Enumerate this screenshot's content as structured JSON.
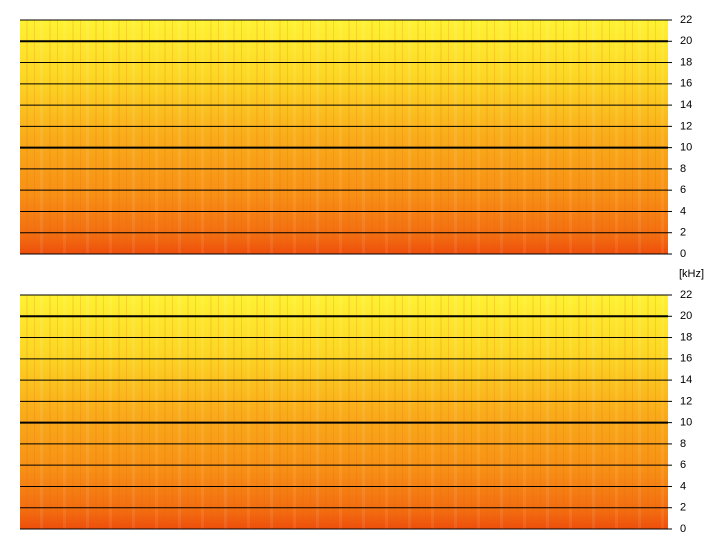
{
  "chart_data": [
    {
      "type": "spectrogram",
      "ylabel": "[kHz]",
      "ylim": [
        0,
        22
      ],
      "yticks": [
        0,
        2,
        4,
        6,
        8,
        10,
        12,
        14,
        16,
        18,
        20,
        22
      ]
    },
    {
      "type": "spectrogram",
      "ylim": [
        0,
        22
      ],
      "yticks": [
        0,
        2,
        4,
        6,
        8,
        10,
        12,
        14,
        16,
        18,
        20,
        22
      ]
    }
  ]
}
